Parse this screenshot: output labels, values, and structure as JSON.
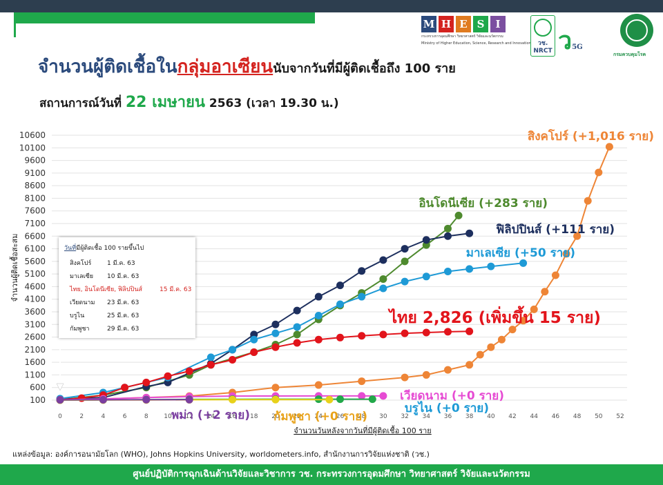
{
  "header": {
    "title_part1": "จำนวนผู้ติดเชื้อใน",
    "title_highlight": "กลุ่มอาเซียน",
    "title_part2": "นับจากวันที่มีผู้ติดเชื้อถึง 100 ราย",
    "situation_prefix": "สถานการณ์วันที่ ",
    "situation_date": "22 เมษายน",
    "situation_suffix": " 2563  (เวลา 19.30 น.)"
  },
  "logos": {
    "mhesi_letters": [
      "M",
      "H",
      "E",
      "S",
      "I"
    ],
    "mhesi_colors": [
      "#2b4a7c",
      "#d4231f",
      "#e07b1f",
      "#1fa84b",
      "#7b4fa0"
    ],
    "mhesi_caption_th": "กระทรวงการอุดมศึกษา วิทยาศาสตร์ วิจัยและนวัตกรรม",
    "mhesi_caption_en": "Ministry of Higher Education, Science, Research and Innovation",
    "nrct_label": "วช.",
    "nrct_sub": "NRCT",
    "vc_text": "ว",
    "vc_5g": "5G",
    "moph_label": "กรมควบคุมโรค"
  },
  "infobox": {
    "header_underlined": "วันที่",
    "header_rest": "มีผู้ติดเชื้อ 100 รายขึ้นไป",
    "rows": [
      {
        "country": "สิงคโปร์",
        "date": "1 มี.ค. 63",
        "red": false
      },
      {
        "country": "มาเลเซีย",
        "date": "10 มี.ค. 63",
        "red": false
      },
      {
        "country": "ไทย, อินโดนีเซีย, ฟิลิปปินส์",
        "date": "15 มี.ค. 63",
        "red": true
      },
      {
        "country": "เวียดนาม",
        "date": "23 มี.ค. 63",
        "red": false
      },
      {
        "country": "บรูไน",
        "date": "25 มี.ค. 63",
        "red": false
      },
      {
        "country": "กัมพูชา",
        "date": "29 มี.ค. 63",
        "red": false
      }
    ]
  },
  "source": "แหล่งข้อมูล: องค์การอนามัยโลก (WHO), Johns Hopkins University, worldometers.info, สำนักงานการวิจัยแห่งชาติ (วช.)",
  "footer": "ศูนย์ปฏิบัติการฉุกเฉินด้านวิจัยและวิชาการ   วช.   กระทรวงการอุดมศึกษา วิทยาศาสตร์ วิจัยและนวัตกรรม",
  "chart_data": {
    "type": "line",
    "xlabel": "จำนวนวันหลังจากวันที่มีผู้ติดเชื้อ 100 ราย",
    "ylabel": "จำนวนผู้ติดเชื้อสะสม",
    "xlim": [
      0,
      52
    ],
    "xticks": [
      0,
      2,
      4,
      6,
      8,
      10,
      12,
      14,
      16,
      18,
      20,
      22,
      24,
      26,
      28,
      30,
      32,
      34,
      36,
      38,
      40,
      42,
      44,
      46,
      48,
      50,
      52
    ],
    "ylim": [
      100,
      10600
    ],
    "yticks": [
      100,
      600,
      1100,
      1600,
      2100,
      2600,
      3100,
      3600,
      4100,
      4600,
      5100,
      5600,
      6100,
      6600,
      7100,
      7600,
      8100,
      8600,
      9100,
      9600,
      10100,
      10600
    ],
    "grid": true,
    "series": [
      {
        "name": "สิงคโปร์ (+1,016 ราย)",
        "color": "#ee8536",
        "label_color": "#ee8536",
        "points": [
          [
            0,
            100
          ],
          [
            4,
            150
          ],
          [
            8,
            200
          ],
          [
            12,
            260
          ],
          [
            16,
            400
          ],
          [
            20,
            600
          ],
          [
            24,
            700
          ],
          [
            28,
            850
          ],
          [
            32,
            1000
          ],
          [
            34,
            1100
          ],
          [
            36,
            1300
          ],
          [
            38,
            1500
          ],
          [
            39,
            1900
          ],
          [
            40,
            2200
          ],
          [
            41,
            2500
          ],
          [
            42,
            2900
          ],
          [
            43,
            3250
          ],
          [
            44,
            3700
          ],
          [
            45,
            4400
          ],
          [
            46,
            5050
          ],
          [
            47,
            5900
          ],
          [
            48,
            6600
          ],
          [
            49,
            8000
          ],
          [
            50,
            9125
          ],
          [
            51,
            10141
          ]
        ]
      },
      {
        "name": "อินโดนีเซีย (+283 ราย)",
        "color": "#4e8a2e",
        "label_color": "#4e8a2e",
        "points": [
          [
            0,
            117
          ],
          [
            4,
            300
          ],
          [
            8,
            600
          ],
          [
            12,
            1100
          ],
          [
            14,
            1500
          ],
          [
            18,
            2000
          ],
          [
            20,
            2300
          ],
          [
            22,
            2700
          ],
          [
            24,
            3300
          ],
          [
            26,
            3850
          ],
          [
            28,
            4350
          ],
          [
            30,
            4900
          ],
          [
            32,
            5600
          ],
          [
            34,
            6250
          ],
          [
            36,
            6900
          ],
          [
            37,
            7418
          ]
        ]
      },
      {
        "name": "ฟิลิปปินส์ (+111 ราย)",
        "color": "#1d2f5e",
        "label_color": "#1d2f5e",
        "points": [
          [
            0,
            140
          ],
          [
            4,
            200
          ],
          [
            8,
            640
          ],
          [
            10,
            800
          ],
          [
            14,
            1550
          ],
          [
            16,
            2100
          ],
          [
            18,
            2700
          ],
          [
            20,
            3100
          ],
          [
            22,
            3650
          ],
          [
            24,
            4200
          ],
          [
            26,
            4650
          ],
          [
            28,
            5220
          ],
          [
            30,
            5650
          ],
          [
            32,
            6100
          ],
          [
            34,
            6450
          ],
          [
            36,
            6600
          ],
          [
            38,
            6710
          ]
        ]
      },
      {
        "name": "มาเลเซีย (+50 ราย)",
        "color": "#1e9ad6",
        "label_color": "#1e9ad6",
        "points": [
          [
            0,
            158
          ],
          [
            4,
            400
          ],
          [
            6,
            600
          ],
          [
            10,
            1000
          ],
          [
            14,
            1800
          ],
          [
            16,
            2100
          ],
          [
            18,
            2500
          ],
          [
            20,
            2750
          ],
          [
            22,
            3000
          ],
          [
            24,
            3450
          ],
          [
            26,
            3900
          ],
          [
            28,
            4200
          ],
          [
            30,
            4530
          ],
          [
            32,
            4800
          ],
          [
            34,
            5000
          ],
          [
            36,
            5200
          ],
          [
            38,
            5300
          ],
          [
            40,
            5400
          ],
          [
            43,
            5532
          ]
        ]
      },
      {
        "name": "ไทย 2,826 (เพิ่มขึ้น 15 ราย)",
        "color": "#e2141b",
        "label_color": "#e2141b",
        "points": [
          [
            0,
            114
          ],
          [
            2,
            180
          ],
          [
            4,
            300
          ],
          [
            6,
            600
          ],
          [
            8,
            800
          ],
          [
            10,
            1050
          ],
          [
            12,
            1250
          ],
          [
            14,
            1500
          ],
          [
            16,
            1700
          ],
          [
            18,
            2000
          ],
          [
            20,
            2200
          ],
          [
            22,
            2370
          ],
          [
            24,
            2500
          ],
          [
            26,
            2580
          ],
          [
            28,
            2650
          ],
          [
            30,
            2700
          ],
          [
            32,
            2750
          ],
          [
            34,
            2780
          ],
          [
            36,
            2810
          ],
          [
            38,
            2826
          ]
        ]
      },
      {
        "name": "เวียดนาม (+0 ราย)",
        "color": "#e64bd3",
        "label_color": "#e64bd3",
        "points": [
          [
            0,
            113
          ],
          [
            4,
            150
          ],
          [
            8,
            200
          ],
          [
            12,
            240
          ],
          [
            16,
            260
          ],
          [
            20,
            265
          ],
          [
            24,
            268
          ],
          [
            28,
            268
          ],
          [
            30,
            268
          ]
        ]
      },
      {
        "name": "บรูไน (+0 ราย)",
        "color": "#22a84a",
        "label_color": "#1e9ad6",
        "points": [
          [
            0,
            104
          ],
          [
            4,
            110
          ],
          [
            8,
            120
          ],
          [
            12,
            130
          ],
          [
            16,
            136
          ],
          [
            20,
            138
          ],
          [
            24,
            138
          ],
          [
            26,
            138
          ],
          [
            29,
            138
          ]
        ]
      },
      {
        "name": "กัมพูชา (+0 ราย)",
        "color": "#e8d11a",
        "label_color": "#e8a21a",
        "points": [
          [
            0,
            103
          ],
          [
            4,
            105
          ],
          [
            8,
            107
          ],
          [
            12,
            115
          ],
          [
            16,
            120
          ],
          [
            20,
            122
          ],
          [
            25,
            122
          ]
        ]
      },
      {
        "name": "พม่า (+2 ราย)",
        "color": "#7b3fa0",
        "label_color": "#7b3fa0",
        "points": [
          [
            0,
            110
          ],
          [
            4,
            115
          ],
          [
            8,
            117
          ],
          [
            12,
            119
          ]
        ]
      }
    ]
  }
}
